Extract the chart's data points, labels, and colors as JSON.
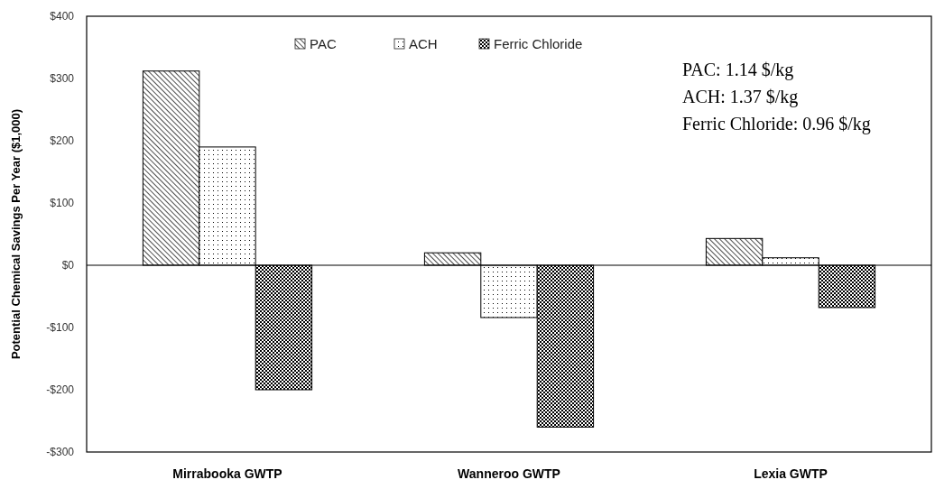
{
  "chart_data": {
    "type": "bar",
    "categories": [
      "Mirrabooka GWTP",
      "Wanneroo GWTP",
      "Lexia GWTP"
    ],
    "ylabel": "Potential Chemical Savings Per Year ($1,000)",
    "ylim": [
      -300,
      400
    ],
    "yticks": [
      {
        "value": -300,
        "label": "-$300"
      },
      {
        "value": -200,
        "label": "-$200"
      },
      {
        "value": -100,
        "label": "-$100"
      },
      {
        "value": 0,
        "label": "$0"
      },
      {
        "value": 100,
        "label": "$100"
      },
      {
        "value": 200,
        "label": "$200"
      },
      {
        "value": 300,
        "label": "$300"
      },
      {
        "value": 400,
        "label": "$400"
      }
    ],
    "series": [
      {
        "name": "PAC",
        "color": "#000000",
        "values": [
          312,
          20,
          43
        ]
      },
      {
        "name": "ACH",
        "color": "#000000",
        "values": [
          190,
          -84,
          12
        ]
      },
      {
        "name": "Ferric Chloride",
        "color": "#000000",
        "values": [
          -200,
          -260,
          -68
        ]
      }
    ],
    "annotations": [
      "PAC: 1.14 $/kg",
      "ACH: 1.37 $/kg",
      "Ferric Chloride: 0.96 $/kg"
    ],
    "legend": "top"
  }
}
